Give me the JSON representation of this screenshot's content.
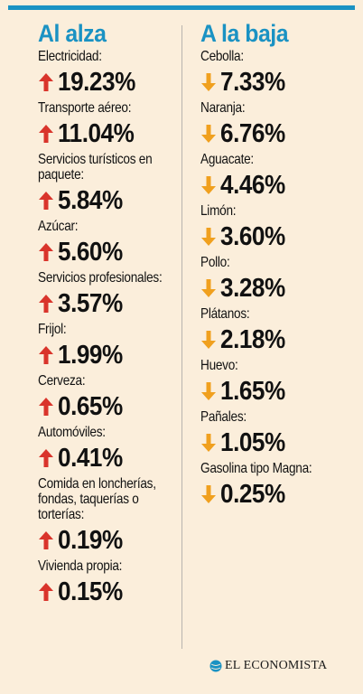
{
  "left": {
    "title": "Al alza",
    "color": "#d9342b",
    "items": [
      {
        "label": "Electricidad:",
        "value": "19.23%"
      },
      {
        "label": "Transporte aéreo:",
        "value": "11.04%"
      },
      {
        "label": "Servicios turísticos en paquete:",
        "value": "5.84%"
      },
      {
        "label": "Azúcar:",
        "value": "5.60%"
      },
      {
        "label": "Servicios profesionales:",
        "value": "3.57%"
      },
      {
        "label": "Frijol:",
        "value": "1.99%"
      },
      {
        "label": "Cerveza:",
        "value": "0.65%"
      },
      {
        "label": "Automóviles:",
        "value": "0.41%"
      },
      {
        "label": "Comida en loncherías, fondas, taquerías o torterías:",
        "value": "0.19%"
      },
      {
        "label": "Vivienda propia:",
        "value": "0.15%"
      }
    ]
  },
  "right": {
    "title": "A la baja",
    "color": "#f0a01e",
    "items": [
      {
        "label": "Cebolla:",
        "value": "7.33%"
      },
      {
        "label": "Naranja:",
        "value": "6.76%"
      },
      {
        "label": "Aguacate:",
        "value": "4.46%"
      },
      {
        "label": "Limón:",
        "value": "3.60%"
      },
      {
        "label": "Pollo:",
        "value": "3.28%"
      },
      {
        "label": "Plátanos:",
        "value": "2.18%"
      },
      {
        "label": "Huevo:",
        "value": "1.65%"
      },
      {
        "label": "Pañales:",
        "value": "1.05%"
      },
      {
        "label": "Gasolina tipo Magna:",
        "value": "0.25%"
      }
    ]
  },
  "brand": {
    "name": "EL ECONOMISTA",
    "icon": "globe-icon"
  },
  "colors": {
    "accent": "#1a92c3",
    "background": "#fbeedb"
  }
}
